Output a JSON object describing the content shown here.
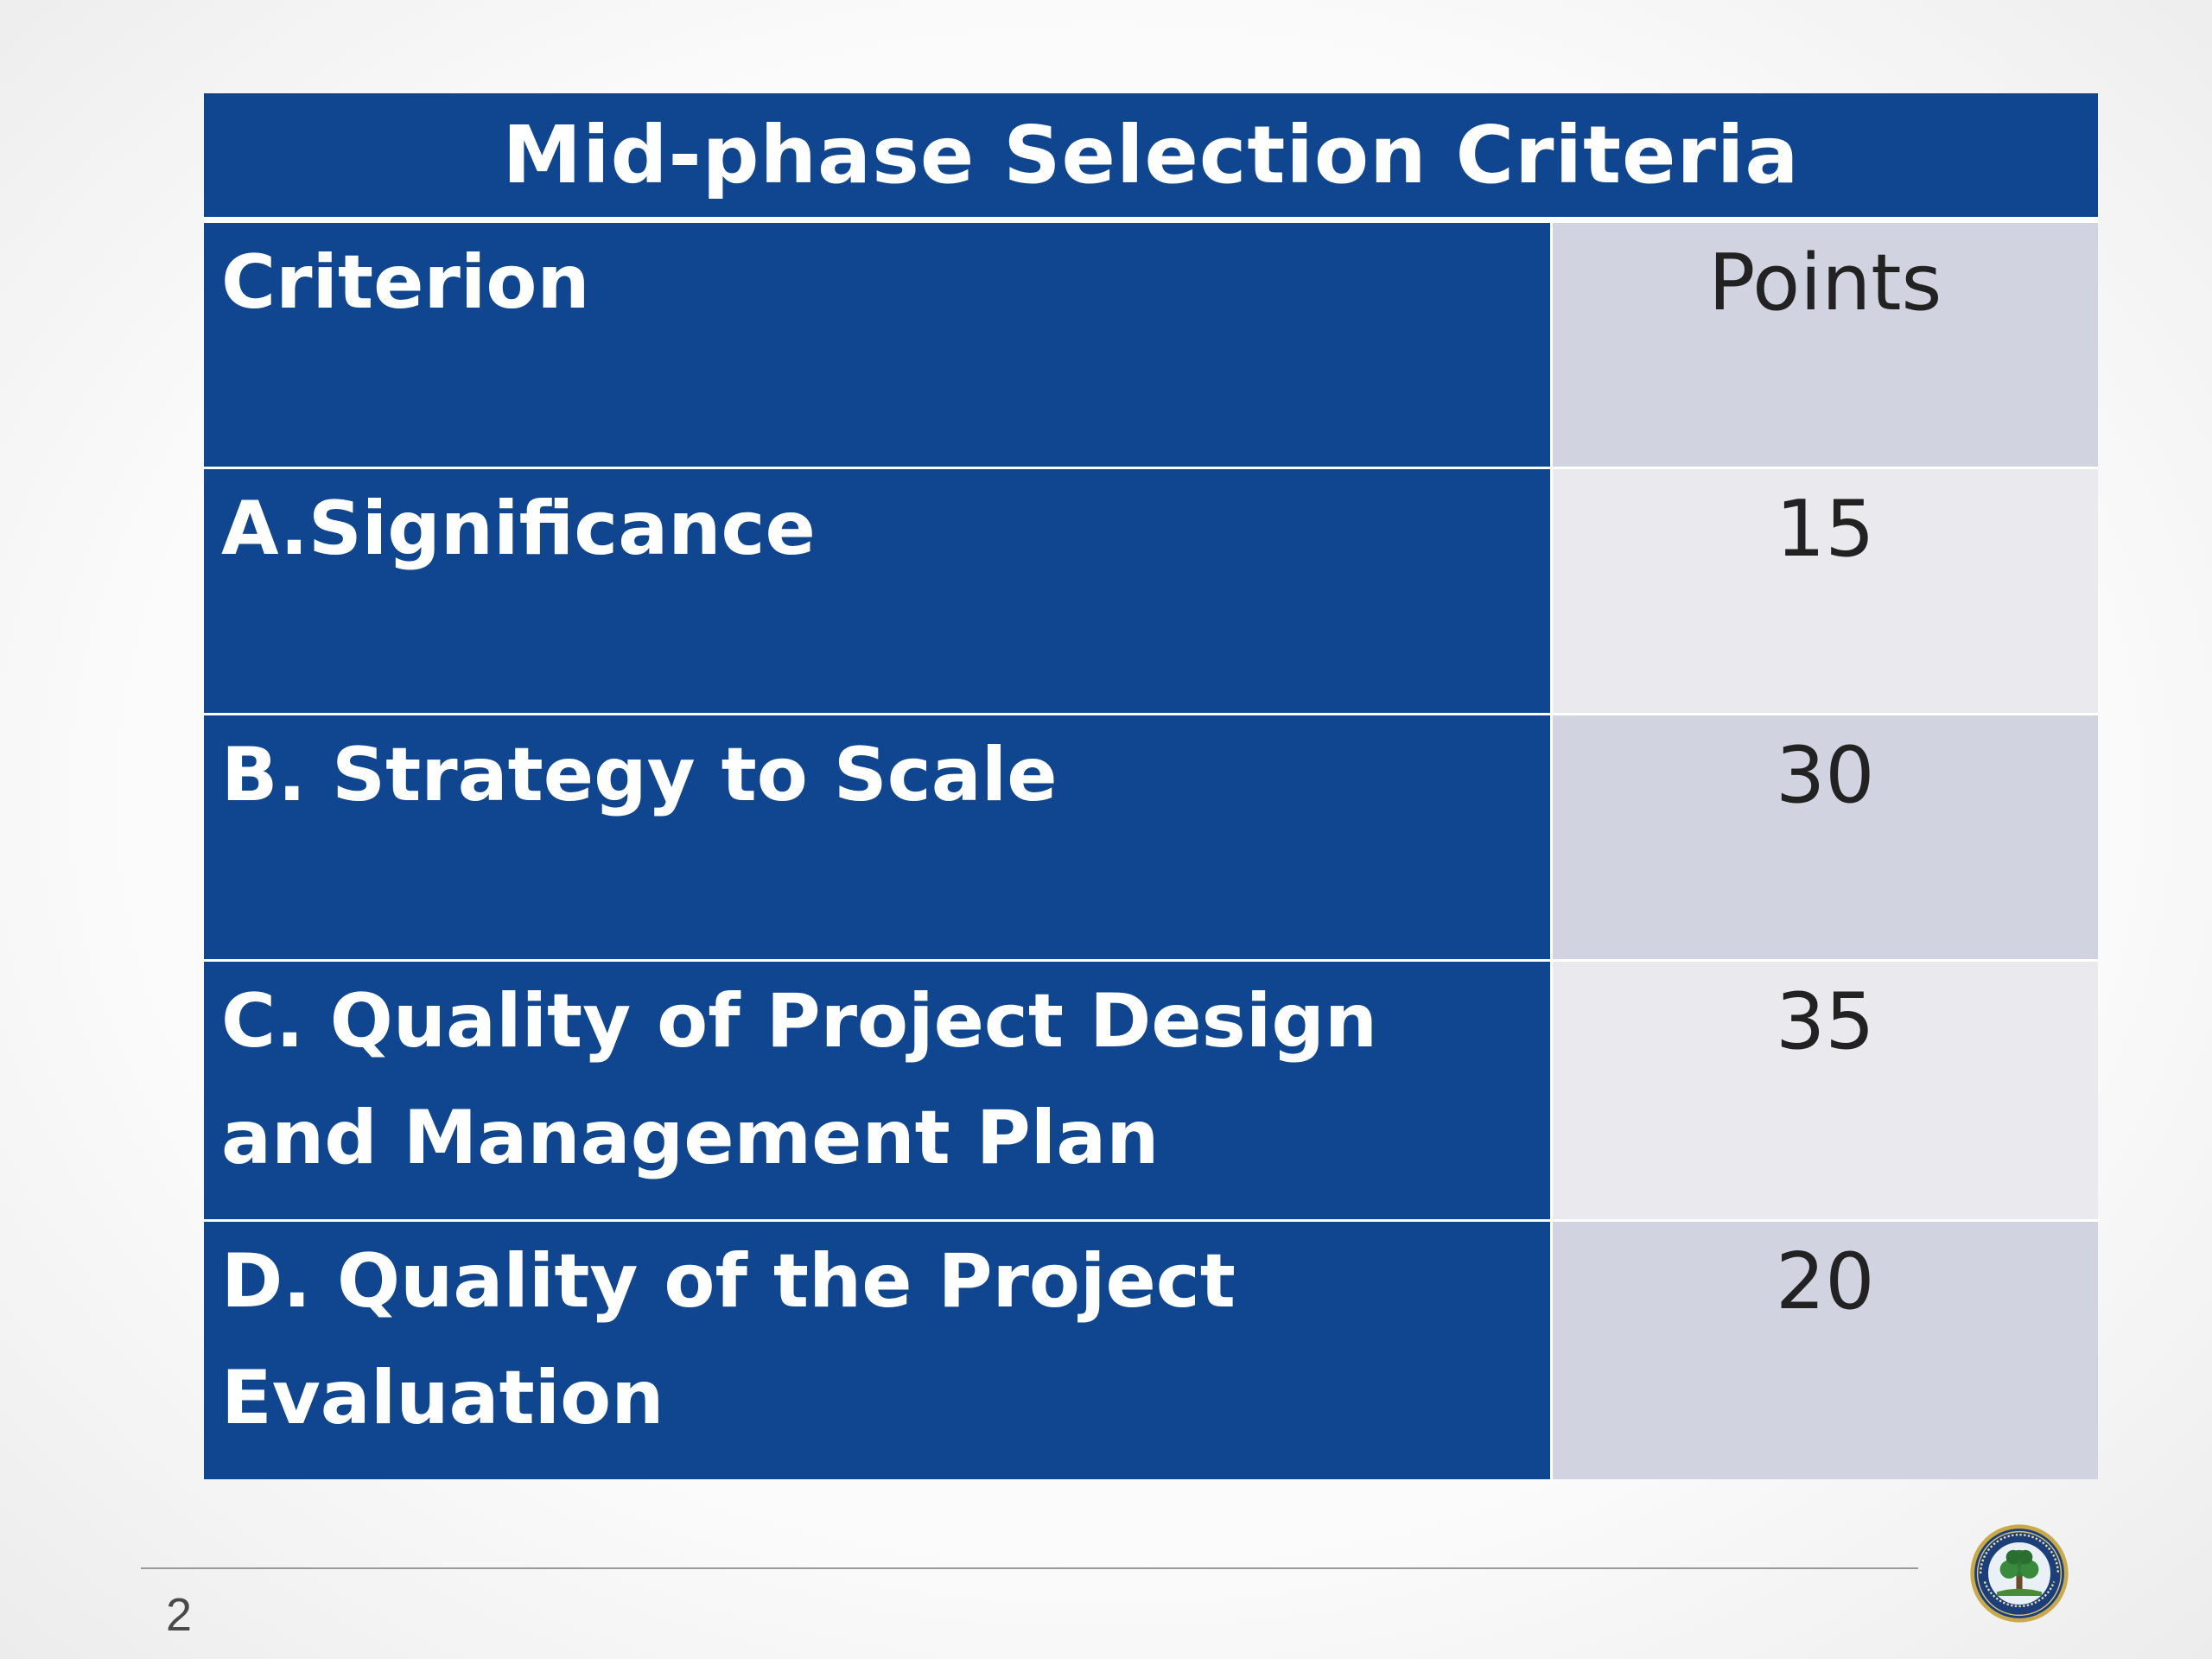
{
  "table": {
    "title": "Mid-phase Selection Criteria",
    "header": {
      "criterion": "Criterion",
      "points": "Points"
    },
    "rows": [
      {
        "lines": [
          "A.Significance"
        ],
        "points": "15"
      },
      {
        "lines": [
          "B. Strategy to Scale"
        ],
        "points": "30"
      },
      {
        "lines": [
          "C. Quality of Project Design",
          "and Management Plan"
        ],
        "points": "35"
      },
      {
        "lines": [
          "D. Quality of the Project",
          "Evaluation"
        ],
        "points": "20"
      }
    ]
  },
  "footer": {
    "page_number": "2",
    "logo_icon": "department-of-education-seal-icon"
  },
  "colors": {
    "table_blue": "#0f468f",
    "points_dark": "#d1d3e0",
    "points_light": "#e9e9ee"
  }
}
